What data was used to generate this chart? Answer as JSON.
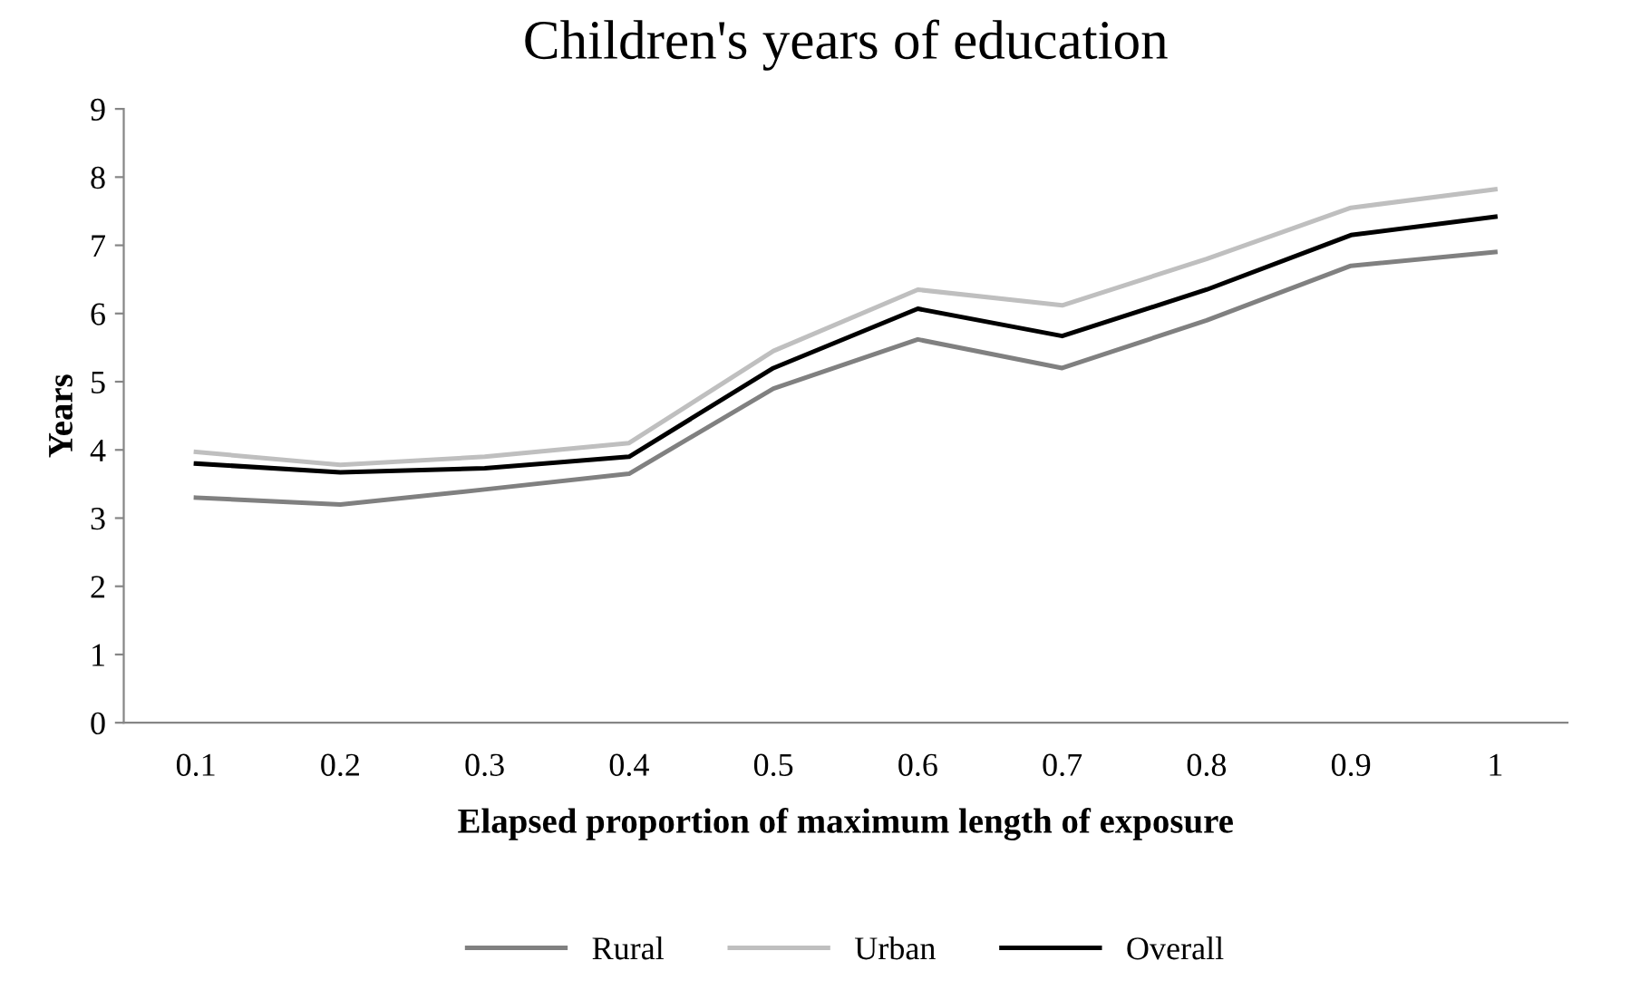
{
  "chart_data": {
    "type": "line",
    "title": "Children's years of education",
    "xlabel": "Elapsed proportion of maximum length of exposure",
    "ylabel": "Years",
    "categories": [
      "0.1",
      "0.2",
      "0.3",
      "0.4",
      "0.5",
      "0.6",
      "0.7",
      "0.8",
      "0.9",
      "1"
    ],
    "series": [
      {
        "name": "Rural",
        "color": "#808080",
        "values": [
          3.3,
          3.2,
          3.42,
          3.65,
          4.9,
          5.62,
          5.2,
          5.9,
          6.7,
          6.9
        ]
      },
      {
        "name": "Urban",
        "color": "#bfbfbf",
        "values": [
          3.97,
          3.78,
          3.9,
          4.1,
          5.45,
          6.35,
          6.12,
          6.8,
          7.55,
          7.82
        ]
      },
      {
        "name": "Overall",
        "color": "#000000",
        "values": [
          3.8,
          3.67,
          3.73,
          3.9,
          5.2,
          6.07,
          5.67,
          6.35,
          7.15,
          7.42
        ]
      }
    ],
    "ylim": [
      0,
      9
    ],
    "yticks": [
      0,
      1,
      2,
      3,
      4,
      5,
      6,
      7,
      8,
      9
    ],
    "grid": false,
    "legend": "bottom",
    "marker": "none",
    "line_style": "solid"
  }
}
